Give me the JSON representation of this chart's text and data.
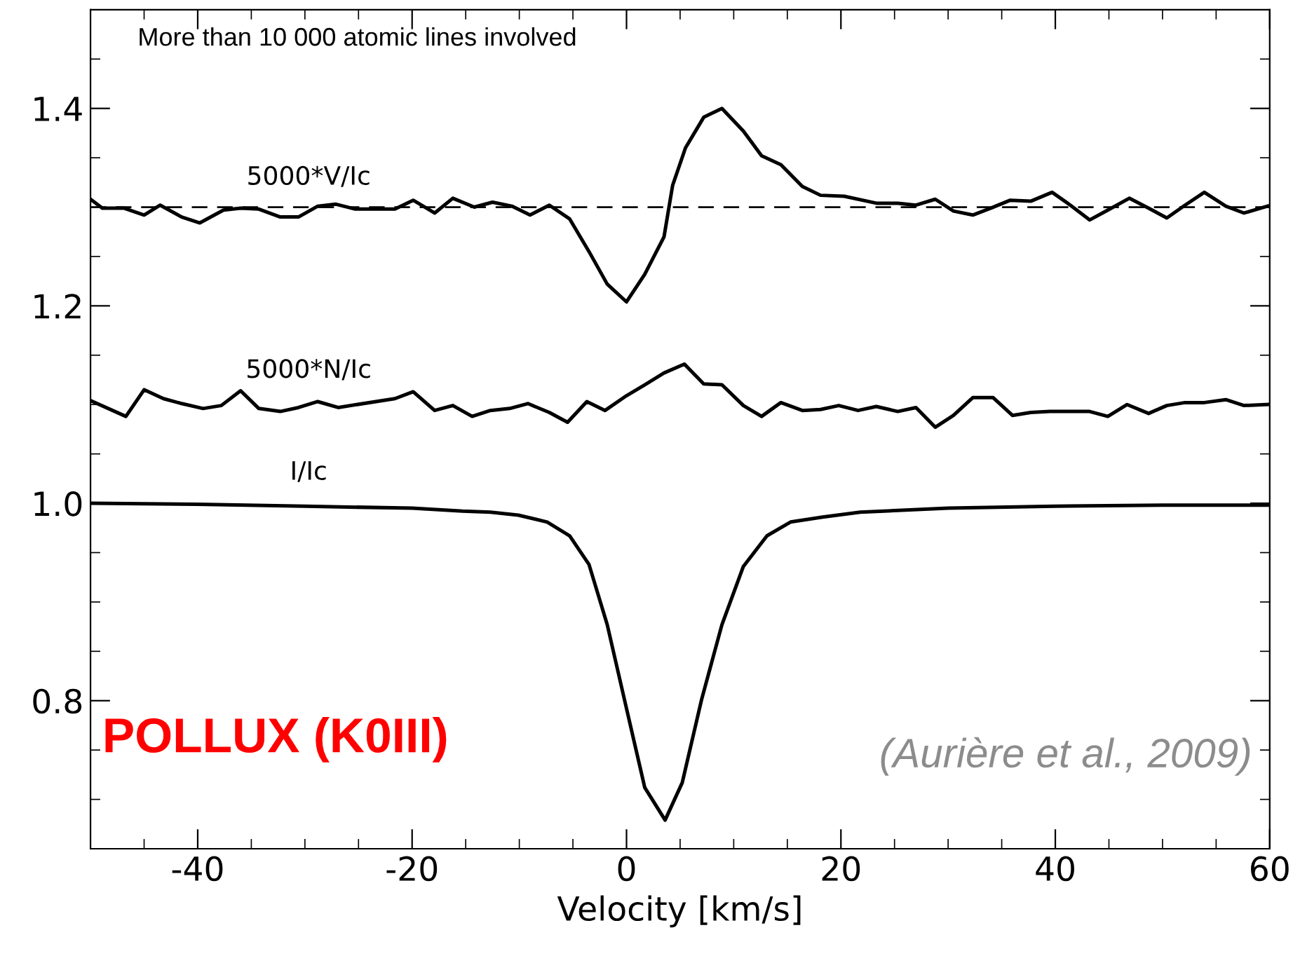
{
  "chart_data": {
    "type": "line",
    "xlabel": "Velocity [km/s]",
    "xlim": [
      -50,
      60
    ],
    "xticks": [
      -40,
      -20,
      0,
      20,
      40,
      60
    ],
    "ylim": [
      0.65,
      1.5
    ],
    "yticks": [
      0.8,
      {
        "value": 1.0,
        "label": "1.0"
      },
      1.2,
      1.4
    ],
    "grid": false,
    "legend": false,
    "marker": "none",
    "line_style": "solid",
    "series": [
      {
        "name": "5000*V/Ic",
        "color": "#000000",
        "x": [
          -50,
          -48.9,
          -46.9,
          -45,
          -43.5,
          -41.5,
          -39.8,
          -37.6,
          -36.0,
          -34.3,
          -32.3,
          -30.6,
          -28.8,
          -27.1,
          -25.3,
          -23.6,
          -21.6,
          -19.9,
          -17.9,
          -16.2,
          -14.2,
          -12.5,
          -10.7,
          -9.0,
          -7.2,
          -5.3,
          -3.5,
          -1.8,
          0,
          1.7,
          3.5,
          4.3,
          5.5,
          7.2,
          8.9,
          10.9,
          12.6,
          14.4,
          16.4,
          18.1,
          20.3,
          23.3,
          25.3,
          27.0,
          28.8,
          30.5,
          32.3,
          34.0,
          35.8,
          37.7,
          39.7,
          41.4,
          43.2,
          44.9,
          46.9,
          48.7,
          50.4,
          52.1,
          53.9,
          55.9,
          57.6,
          59.8
        ],
        "values": [
          1.308,
          1.299,
          1.299,
          1.292,
          1.302,
          1.29,
          1.284,
          1.297,
          1.299,
          1.298,
          1.29,
          1.29,
          1.301,
          1.303,
          1.298,
          1.298,
          1.298,
          1.307,
          1.294,
          1.309,
          1.3,
          1.305,
          1.301,
          1.292,
          1.302,
          1.288,
          1.255,
          1.222,
          1.204,
          1.232,
          1.27,
          1.322,
          1.36,
          1.391,
          1.4,
          1.377,
          1.352,
          1.343,
          1.321,
          1.312,
          1.311,
          1.304,
          1.304,
          1.302,
          1.308,
          1.296,
          1.292,
          1.299,
          1.307,
          1.306,
          1.315,
          1.302,
          1.287,
          1.297,
          1.309,
          1.299,
          1.289,
          1.302,
          1.315,
          1.301,
          1.294,
          1.301
        ]
      },
      {
        "name": "5000*N/Ic",
        "color": "#000000",
        "x": [
          -50,
          -46.7,
          -45,
          -43.2,
          -41.5,
          -39.5,
          -37.8,
          -36.0,
          -34.3,
          -32.3,
          -30.6,
          -28.8,
          -26.9,
          -21.6,
          -19.9,
          -17.9,
          -16.2,
          -14.4,
          -12.7,
          -10.9,
          -9.2,
          -7.2,
          -5.5,
          -3.7,
          -2.0,
          0,
          1.7,
          3.5,
          5.4,
          7.2,
          8.9,
          10.9,
          12.6,
          14.4,
          16.4,
          18.1,
          19.8,
          21.6,
          23.3,
          25.3,
          27.0,
          28.8,
          30.5,
          32.3,
          34.2,
          36.0,
          37.7,
          39.5,
          41.4,
          43.2,
          44.9,
          46.7,
          48.7,
          50.4,
          52.1,
          53.9,
          55.9,
          57.6,
          59.8
        ],
        "values": [
          1.104,
          1.088,
          1.115,
          1.106,
          1.101,
          1.096,
          1.099,
          1.114,
          1.096,
          1.093,
          1.097,
          1.103,
          1.097,
          1.106,
          1.113,
          1.094,
          1.099,
          1.088,
          1.094,
          1.096,
          1.101,
          1.092,
          1.082,
          1.103,
          1.094,
          1.109,
          1.12,
          1.132,
          1.141,
          1.121,
          1.12,
          1.099,
          1.088,
          1.102,
          1.094,
          1.095,
          1.099,
          1.094,
          1.098,
          1.093,
          1.097,
          1.077,
          1.089,
          1.107,
          1.107,
          1.089,
          1.092,
          1.093,
          1.093,
          1.093,
          1.088,
          1.1,
          1.091,
          1.099,
          1.102,
          1.102,
          1.105,
          1.099,
          1.1
        ]
      },
      {
        "name": "I/Ic",
        "color": "#000000",
        "x": [
          -50,
          -40,
          -30,
          -20,
          -15.3,
          -12.7,
          -10.1,
          -7.4,
          -5.3,
          -3.5,
          -1.8,
          0,
          1.7,
          3.6,
          5.2,
          7.0,
          8.9,
          10.9,
          13.1,
          15.3,
          18.3,
          21.8,
          30,
          40,
          50,
          60
        ],
        "values": [
          1.0,
          0.999,
          0.997,
          0.995,
          0.992,
          0.991,
          0.988,
          0.981,
          0.967,
          0.938,
          0.877,
          0.792,
          0.712,
          0.679,
          0.717,
          0.801,
          0.877,
          0.936,
          0.967,
          0.981,
          0.986,
          0.991,
          0.995,
          0.997,
          0.998,
          0.998
        ]
      }
    ],
    "ref_lines": [
      {
        "axis": "y",
        "value": 1.3,
        "color": "#000000",
        "line_style": "dashed"
      }
    ],
    "annotations": [
      "More than 10 000 atomic lines involved",
      "POLLUX (K0III)",
      "(Aurière et al., 2009)"
    ]
  }
}
